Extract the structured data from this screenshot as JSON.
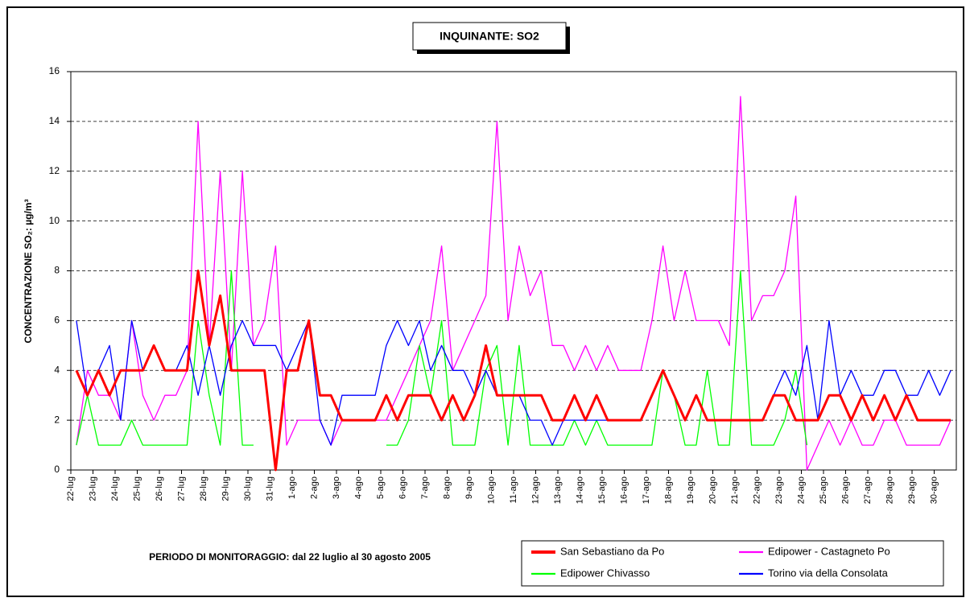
{
  "chart_data": {
    "type": "line",
    "title": "INQUINANTE: SO2",
    "y_label": "CONCENTRAZIONE SO₂: µg/m³",
    "note": "PERIODO DI MONITORAGGIO: dal 22 luglio al 30 agosto 2005",
    "categories": [
      "22-lug",
      null,
      "23-lug",
      null,
      "24-lug",
      null,
      "25-lug",
      null,
      "26-lug",
      null,
      "27-lug",
      null,
      "28-lug",
      null,
      "29-lug",
      null,
      "30-lug",
      null,
      "31-lug",
      null,
      "1-ago",
      null,
      "2-ago",
      null,
      "3-ago",
      null,
      "4-ago",
      null,
      "5-ago",
      null,
      "6-ago",
      null,
      "7-ago",
      null,
      "8-ago",
      null,
      "9-ago",
      null,
      "10-ago",
      null,
      "11-ago",
      null,
      "12-ago",
      null,
      "13-ago",
      null,
      "14-ago",
      null,
      "15-ago",
      null,
      "16-ago",
      null,
      "17-ago",
      null,
      "18-ago",
      null,
      "19-ago",
      null,
      "20-ago",
      null,
      "21-ago",
      null,
      "22-ago",
      null,
      "23-ago",
      null,
      "24-ago",
      null,
      "25-ago",
      null,
      "26-ago",
      null,
      "27-ago",
      null,
      "28-ago",
      null,
      "29-ago",
      null,
      "30-ago",
      null
    ],
    "series": [
      {
        "name": "San Sebastiano da Po",
        "color": "#ff0000",
        "width": 3,
        "values": [
          4,
          3,
          4,
          3,
          4,
          4,
          4,
          5,
          4,
          4,
          4,
          8,
          5,
          7,
          4,
          4,
          4,
          4,
          0,
          4,
          4,
          6,
          3,
          3,
          2,
          2,
          2,
          2,
          3,
          2,
          3,
          3,
          3,
          2,
          3,
          2,
          3,
          5,
          3,
          3,
          3,
          3,
          3,
          2,
          2,
          3,
          2,
          3,
          2,
          2,
          2,
          2,
          3,
          4,
          3,
          2,
          3,
          2,
          2,
          2,
          2,
          2,
          2,
          3,
          3,
          2,
          2,
          2,
          3,
          3,
          2,
          3,
          2,
          3,
          2,
          3,
          2,
          2,
          2,
          2
        ]
      },
      {
        "name": "Edipower - Castagneto Po",
        "color": "#ff00ff",
        "width": 1.3,
        "values": [
          1,
          4,
          3,
          3,
          2,
          6,
          3,
          2,
          3,
          3,
          4,
          14,
          5,
          12,
          4,
          12,
          5,
          6,
          9,
          1,
          2,
          2,
          2,
          1,
          2,
          2,
          2,
          2,
          2,
          3,
          4,
          5,
          6,
          9,
          4,
          5,
          6,
          7,
          14,
          6,
          9,
          7,
          8,
          5,
          5,
          4,
          5,
          4,
          5,
          4,
          4,
          4,
          6,
          9,
          6,
          8,
          6,
          6,
          6,
          5,
          15,
          6,
          7,
          7,
          8,
          11,
          0,
          1,
          2,
          1,
          2,
          1,
          1,
          2,
          2,
          1,
          1,
          1,
          1,
          2
        ]
      },
      {
        "name": "Edipower Chivasso",
        "color": "#00ff00",
        "width": 1.3,
        "values": [
          1,
          3,
          1,
          1,
          1,
          2,
          1,
          1,
          1,
          1,
          1,
          6,
          3,
          1,
          8,
          1,
          1,
          null,
          null,
          null,
          1,
          null,
          null,
          null,
          null,
          null,
          null,
          null,
          1,
          1,
          2,
          5,
          3,
          6,
          1,
          1,
          1,
          4,
          5,
          1,
          5,
          1,
          1,
          1,
          1,
          2,
          1,
          2,
          1,
          1,
          1,
          1,
          1,
          4,
          3,
          1,
          1,
          4,
          1,
          1,
          8,
          1,
          1,
          1,
          2,
          4,
          1,
          null,
          null,
          null,
          null,
          null,
          null,
          null,
          null,
          null,
          null,
          null,
          null,
          null
        ]
      },
      {
        "name": "Torino via della Consolata",
        "color": "#0000ff",
        "width": 1.3,
        "values": [
          6,
          3,
          4,
          5,
          2,
          6,
          4,
          5,
          4,
          4,
          5,
          3,
          5,
          3,
          5,
          6,
          5,
          5,
          5,
          4,
          5,
          6,
          2,
          1,
          3,
          3,
          3,
          3,
          5,
          6,
          5,
          6,
          4,
          5,
          4,
          4,
          3,
          4,
          3,
          3,
          3,
          2,
          2,
          1,
          2,
          2,
          2,
          2,
          2,
          null,
          null,
          null,
          null,
          null,
          null,
          null,
          null,
          null,
          null,
          null,
          null,
          null,
          null,
          3,
          4,
          3,
          5,
          2,
          6,
          3,
          4,
          3,
          3,
          4,
          4,
          3,
          3,
          4,
          3,
          4
        ]
      }
    ],
    "ylim": [
      0,
      16
    ],
    "yticks": [
      0,
      2,
      4,
      6,
      8,
      10,
      12,
      14,
      16
    ],
    "grid": true
  }
}
